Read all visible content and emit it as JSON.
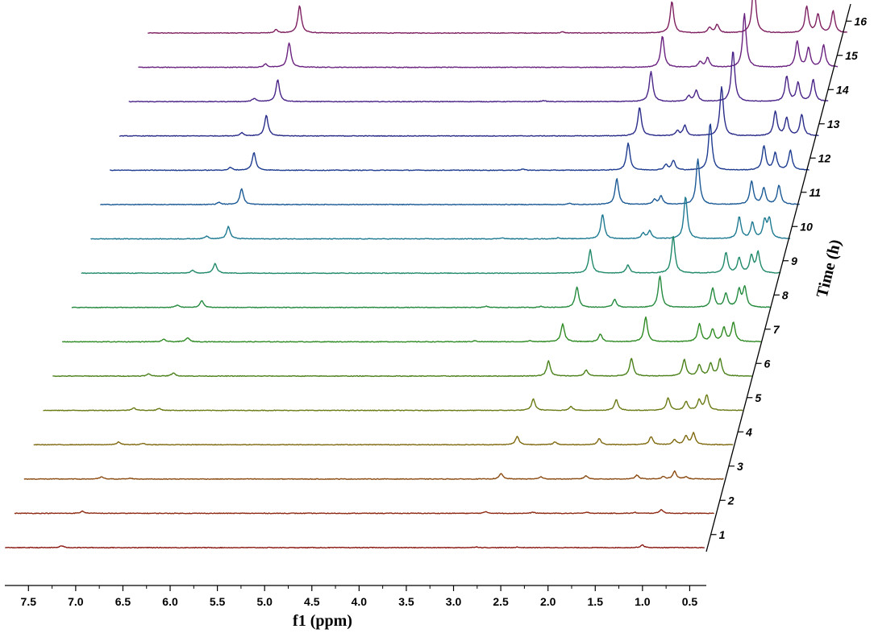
{
  "chart_data": {
    "type": "line",
    "subtype": "stacked-nmr-waterfall",
    "xlabel": "f1 (ppm)",
    "zlabel": "Time (h)",
    "x_axis_reversed": true,
    "xlim": [
      7.8,
      0.35
    ],
    "x_ticks": [
      "7.5",
      "7.0",
      "6.5",
      "6.0",
      "5.5",
      "5.0",
      "4.5",
      "4.0",
      "3.5",
      "3.0",
      "2.5",
      "2.0",
      "1.5",
      "1.0",
      "0.5"
    ],
    "time_ticks": [
      "1",
      "2",
      "3",
      "4",
      "5",
      "6",
      "7",
      "8",
      "9",
      "10",
      "11",
      "12",
      "13",
      "14",
      "15",
      "16"
    ],
    "grid": false,
    "legend": "none",
    "series": [
      {
        "time": "1",
        "color": "#8b1a14",
        "peaks": [
          [
            7.18,
            0.07
          ],
          [
            2.78,
            0.03
          ],
          [
            2.35,
            0.02
          ],
          [
            1.02,
            0.1
          ]
        ]
      },
      {
        "time": "2",
        "color": "#8e2a12",
        "peaks": [
          [
            7.06,
            0.08
          ],
          [
            2.78,
            0.06
          ],
          [
            2.28,
            0.04
          ],
          [
            1.7,
            0.04
          ],
          [
            1.2,
            0.03
          ],
          [
            0.92,
            0.14
          ]
        ]
      },
      {
        "time": "3",
        "color": "#8a4a10",
        "peaks": [
          [
            6.96,
            0.08
          ],
          [
            6.65,
            0.03
          ],
          [
            2.72,
            0.2
          ],
          [
            2.3,
            0.08
          ],
          [
            1.82,
            0.12
          ],
          [
            1.28,
            0.14
          ],
          [
            1.0,
            0.08
          ],
          [
            0.88,
            0.28
          ],
          [
            0.76,
            0.08
          ]
        ]
      },
      {
        "time": "4",
        "color": "#806a10",
        "peaks": [
          [
            6.88,
            0.1
          ],
          [
            6.62,
            0.05
          ],
          [
            2.65,
            0.3
          ],
          [
            2.25,
            0.1
          ],
          [
            1.78,
            0.22
          ],
          [
            1.23,
            0.3
          ],
          [
            0.98,
            0.18
          ],
          [
            0.86,
            0.32
          ],
          [
            0.78,
            0.42
          ]
        ]
      },
      {
        "time": "5",
        "color": "#6a7a14",
        "peaks": [
          [
            6.82,
            0.1
          ],
          [
            6.55,
            0.07
          ],
          [
            2.58,
            0.42
          ],
          [
            2.18,
            0.14
          ],
          [
            1.7,
            0.4
          ],
          [
            1.15,
            0.45
          ],
          [
            0.96,
            0.32
          ],
          [
            0.82,
            0.38
          ],
          [
            0.74,
            0.55
          ]
        ]
      },
      {
        "time": "6",
        "color": "#4a8018",
        "peaks": [
          [
            6.76,
            0.08
          ],
          [
            6.5,
            0.12
          ],
          [
            2.52,
            0.55
          ],
          [
            2.12,
            0.22
          ],
          [
            1.64,
            0.65
          ],
          [
            1.08,
            0.6
          ],
          [
            0.92,
            0.4
          ],
          [
            0.8,
            0.45
          ],
          [
            0.7,
            0.62
          ]
        ]
      },
      {
        "time": "7",
        "color": "#2e8a22",
        "peaks": [
          [
            6.7,
            0.09
          ],
          [
            6.45,
            0.15
          ],
          [
            3.4,
            0.04
          ],
          [
            2.82,
            0.04
          ],
          [
            2.47,
            0.65
          ],
          [
            2.07,
            0.28
          ],
          [
            1.59,
            0.9
          ],
          [
            1.02,
            0.65
          ],
          [
            0.88,
            0.45
          ],
          [
            0.76,
            0.5
          ],
          [
            0.66,
            0.7
          ]
        ]
      },
      {
        "time": "8",
        "color": "#248a3e",
        "peaks": [
          [
            6.66,
            0.09
          ],
          [
            6.4,
            0.25
          ],
          [
            3.38,
            0.04
          ],
          [
            2.8,
            0.04
          ],
          [
            2.42,
            0.75
          ],
          [
            2.02,
            0.3
          ],
          [
            1.54,
            1.15
          ],
          [
            0.98,
            0.7
          ],
          [
            0.84,
            0.5
          ],
          [
            0.7,
            0.62
          ],
          [
            0.64,
            0.72
          ]
        ]
      },
      {
        "time": "9",
        "color": "#20896a",
        "peaks": [
          [
            6.6,
            0.1
          ],
          [
            6.36,
            0.35
          ],
          [
            2.38,
            0.85
          ],
          [
            1.98,
            0.3
          ],
          [
            1.5,
            1.35
          ],
          [
            0.94,
            0.75
          ],
          [
            0.8,
            0.55
          ],
          [
            0.67,
            0.62
          ],
          [
            0.6,
            0.75
          ]
        ]
      },
      {
        "time": "10",
        "color": "#1e7a92",
        "peaks": [
          [
            6.55,
            0.1
          ],
          [
            6.32,
            0.45
          ],
          [
            3.42,
            0.04
          ],
          [
            2.82,
            0.04
          ],
          [
            2.35,
            0.9
          ],
          [
            1.92,
            0.2
          ],
          [
            1.85,
            0.28
          ],
          [
            1.47,
            1.55
          ],
          [
            0.9,
            0.8
          ],
          [
            0.76,
            0.58
          ],
          [
            0.63,
            0.65
          ],
          [
            0.58,
            0.7
          ]
        ]
      },
      {
        "time": "11",
        "color": "#1c5a96",
        "peaks": [
          [
            6.52,
            0.08
          ],
          [
            6.28,
            0.58
          ],
          [
            2.8,
            0.04
          ],
          [
            2.3,
            0.95
          ],
          [
            1.9,
            0.18
          ],
          [
            1.83,
            0.3
          ],
          [
            1.44,
            1.65
          ],
          [
            0.87,
            0.85
          ],
          [
            0.74,
            0.6
          ],
          [
            0.58,
            0.7
          ]
        ]
      },
      {
        "time": "12",
        "color": "#1e3c90",
        "peaks": [
          [
            6.5,
            0.1
          ],
          [
            6.25,
            0.65
          ],
          [
            3.4,
            0.04
          ],
          [
            2.28,
            1.0
          ],
          [
            1.88,
            0.2
          ],
          [
            1.8,
            0.35
          ],
          [
            1.41,
            1.72
          ],
          [
            0.84,
            0.88
          ],
          [
            0.72,
            0.62
          ],
          [
            0.56,
            0.72
          ]
        ]
      },
      {
        "time": "13",
        "color": "#2a2c8a",
        "peaks": [
          [
            6.48,
            0.12
          ],
          [
            6.22,
            0.75
          ],
          [
            2.26,
            1.05
          ],
          [
            1.86,
            0.18
          ],
          [
            1.78,
            0.38
          ],
          [
            1.39,
            1.8
          ],
          [
            0.82,
            0.9
          ],
          [
            0.7,
            0.65
          ],
          [
            0.54,
            0.78
          ]
        ]
      },
      {
        "time": "14",
        "color": "#4a2488",
        "peaks": [
          [
            6.45,
            0.12
          ],
          [
            6.2,
            0.8
          ],
          [
            3.38,
            0.04
          ],
          [
            2.24,
            1.1
          ],
          [
            1.84,
            0.2
          ],
          [
            1.76,
            0.4
          ],
          [
            1.37,
            1.85
          ],
          [
            0.8,
            0.92
          ],
          [
            0.68,
            0.68
          ],
          [
            0.52,
            0.8
          ]
        ]
      },
      {
        "time": "15",
        "color": "#6a2280",
        "peaks": [
          [
            6.43,
            0.12
          ],
          [
            6.18,
            0.9
          ],
          [
            2.22,
            1.15
          ],
          [
            1.82,
            0.2
          ],
          [
            1.74,
            0.35
          ],
          [
            1.35,
            1.95
          ],
          [
            0.79,
            0.95
          ],
          [
            0.67,
            0.7
          ],
          [
            0.51,
            0.82
          ]
        ]
      },
      {
        "time": "16",
        "color": "#7e2060",
        "peaks": [
          [
            6.42,
            0.12
          ],
          [
            6.17,
            1.0
          ],
          [
            3.38,
            0.04
          ],
          [
            2.22,
            1.15
          ],
          [
            1.82,
            0.2
          ],
          [
            1.74,
            0.3
          ],
          [
            1.35,
            1.95
          ],
          [
            0.79,
            0.95
          ],
          [
            0.67,
            0.68
          ],
          [
            0.51,
            0.8
          ]
        ]
      }
    ]
  }
}
